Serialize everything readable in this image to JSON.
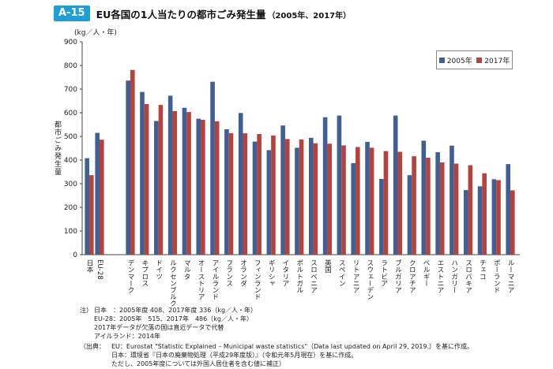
{
  "header": {
    "badge": "A-15",
    "title": "EU各国の1人当たりの都市ごみ発生量",
    "subtitle": "（2005年、2017年）"
  },
  "colors": {
    "y2005": "#3f5f95",
    "y2017": "#b5433c"
  },
  "chart_data": {
    "type": "bar",
    "unit_label": "(kg／人・年)",
    "ylabel": "都市ごみ発生量",
    "ylim": [
      0,
      900
    ],
    "yticks": [
      0,
      100,
      200,
      300,
      400,
      500,
      600,
      700,
      800,
      900
    ],
    "grid": false,
    "legend_position": "top-right",
    "categories": [
      "日本",
      "EU-28",
      "デンマーク",
      "キプロス",
      "ドイツ",
      "ルクセンブルク",
      "マルタ",
      "オーストリア",
      "アイルランド",
      "フランス",
      "オランダ",
      "フィンランド",
      "ギリシャ",
      "イタリア",
      "ポルトガル",
      "スロベニア",
      "英国",
      "スペイン",
      "リトアニア",
      "スウェーデン",
      "ラトビア",
      "ブルガリア",
      "クロアチア",
      "ベルギー",
      "エストニア",
      "ハンガリー",
      "スロバキア",
      "チェコ",
      "ポーランド",
      "ルーマニア"
    ],
    "series": [
      {
        "name": "2005年",
        "values": [
          408,
          515,
          736,
          688,
          565,
          672,
          621,
          575,
          731,
          530,
          599,
          478,
          442,
          546,
          452,
          494,
          581,
          588,
          387,
          477,
          320,
          588,
          336,
          482,
          433,
          461,
          273,
          289,
          319,
          383
        ]
      },
      {
        "name": "2017年",
        "values": [
          336,
          486,
          781,
          637,
          633,
          607,
          603,
          570,
          564,
          514,
          513,
          510,
          504,
          489,
          487,
          471,
          469,
          462,
          455,
          452,
          438,
          435,
          416,
          410,
          390,
          385,
          378,
          344,
          315,
          272
        ]
      }
    ]
  },
  "notes": {
    "label": "注）",
    "lines": [
      "日本　：2005年度 408、2017年度 336（kg／人・年）",
      "EU-28：2005年　515、2017年　486（kg／人・年）",
      "2017年データが欠落の国は直近データで代替",
      "アイルランド：2014年"
    ]
  },
  "sources": {
    "label": "（出典：",
    "rows": [
      {
        "key": "EU",
        "text": "：Eurostat \"Statistic Explained – Municipal waste statistics\"（Data last updated on April 29, 2019.）を基に作成。"
      },
      {
        "key": "日本",
        "text": "：環境省『日本の廃棄物処理（平成29年度版）』（令和元年5月現在）を基に作成。"
      },
      {
        "key": "",
        "text": "ただし、2005年度については外国人居住者を含む値に補正）"
      }
    ]
  }
}
